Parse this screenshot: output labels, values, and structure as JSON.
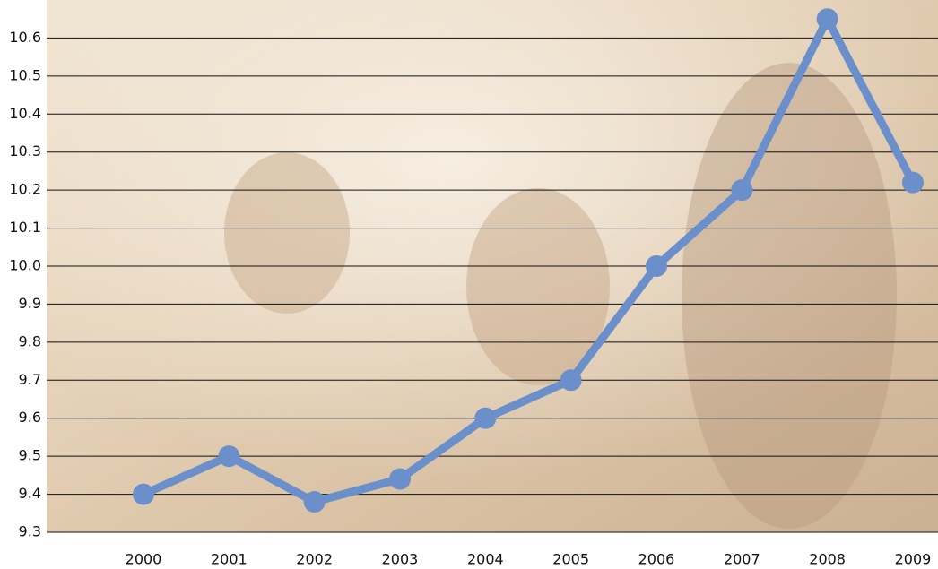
{
  "chart_data": {
    "type": "line",
    "categories": [
      "2000",
      "2001",
      "2002",
      "2003",
      "2004",
      "2005",
      "2006",
      "2007",
      "2008",
      "2009"
    ],
    "series": [
      {
        "color": "#6a8fcb",
        "values": [
          9.4,
          9.5,
          9.38,
          9.44,
          9.6,
          9.7,
          10.0,
          10.2,
          10.65,
          10.22
        ]
      }
    ],
    "ylim": [
      9.3,
      10.7
    ],
    "yticks": [
      9.3,
      9.4,
      9.5,
      9.6,
      9.7,
      9.8,
      9.9,
      {
        "value": 10,
        "label": "10.0"
      },
      10.1,
      10.2,
      10.3,
      10.4,
      10.5,
      10.6
    ],
    "grid": true
  }
}
